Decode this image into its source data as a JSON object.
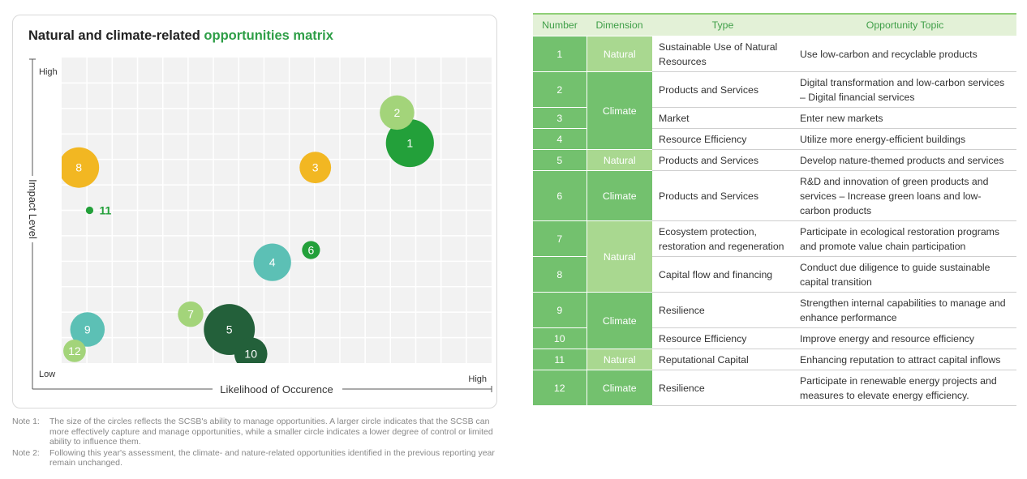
{
  "chart_data": {
    "type": "scatter",
    "title_main": "Natural and climate-related ",
    "title_accent": "opportunities matrix",
    "xlabel": "Likelihood of Occurence",
    "ylabel": "Impact Level",
    "x_low_label": "Low",
    "x_high_label": "High",
    "y_high_label": "High",
    "xlim": [
      0,
      10
    ],
    "ylim": [
      0,
      10
    ],
    "grid": true,
    "points": [
      {
        "label": "1",
        "x": 8.1,
        "y": 7.2,
        "size": 1.6,
        "color": "#23a03a",
        "text_color": "#ffffff"
      },
      {
        "label": "2",
        "x": 7.8,
        "y": 8.2,
        "size": 1.15,
        "color": "#a3d47a",
        "text_color": "#ffffff"
      },
      {
        "label": "3",
        "x": 5.9,
        "y": 6.4,
        "size": 1.05,
        "color": "#f2b722",
        "text_color": "#ffffff"
      },
      {
        "label": "4",
        "x": 4.9,
        "y": 3.3,
        "size": 1.25,
        "color": "#5cc0b5",
        "text_color": "#ffffff"
      },
      {
        "label": "5",
        "x": 3.9,
        "y": 1.1,
        "size": 1.7,
        "color": "#23603a",
        "text_color": "#ffffff"
      },
      {
        "label": "6",
        "x": 5.8,
        "y": 3.7,
        "size": 0.6,
        "color": "#23a03a",
        "text_color": "#ffffff"
      },
      {
        "label": "7",
        "x": 3.0,
        "y": 1.6,
        "size": 0.85,
        "color": "#a3d47a",
        "text_color": "#ffffff"
      },
      {
        "label": "8",
        "x": 0.4,
        "y": 6.4,
        "size": 1.35,
        "color": "#f2b722",
        "text_color": "#ffffff"
      },
      {
        "label": "9",
        "x": 0.6,
        "y": 1.1,
        "size": 1.15,
        "color": "#5cc0b5",
        "text_color": "#ffffff"
      },
      {
        "label": "10",
        "x": 4.4,
        "y": 0.3,
        "size": 1.1,
        "color": "#23603a",
        "text_color": "#ffffff"
      },
      {
        "label": "11",
        "x": 0.65,
        "y": 5.0,
        "size": 0.25,
        "color": "#23a03a",
        "text_color": "#23a03a"
      },
      {
        "label": "12",
        "x": 0.3,
        "y": 0.4,
        "size": 0.75,
        "color": "#a3d47a",
        "text_color": "#ffffff"
      }
    ]
  },
  "notes": [
    {
      "label": "Note 1:",
      "text": "The size of the circles reflects the SCSB's ability to manage opportunities. A larger circle indicates that the SCSB can more effectively capture and manage opportunities, while a smaller circle indicates a lower degree of control or limited ability to influence them."
    },
    {
      "label": "Note 2:",
      "text": "Following this year's assessment, the climate- and nature-related opportunities identified in the previous reporting year remain unchanged."
    }
  ],
  "table": {
    "headers": [
      "Number",
      "Dimension",
      "Type",
      "Opportunity Topic"
    ],
    "rows": [
      {
        "number": "1",
        "dimension": "Natural",
        "dim_kind": "natural",
        "dim_span": 1,
        "type": "Sustainable Use of Natural Resources",
        "type_span": 1,
        "topic": "Use low-carbon and recyclable products",
        "h": 44
      },
      {
        "number": "2",
        "dimension": "Climate",
        "dim_kind": "climate",
        "dim_span": 3,
        "type": "Products and Services",
        "type_span": 1,
        "topic": "Digital transformation and low-carbon services – Digital financial services",
        "h": 44
      },
      {
        "number": "3",
        "type": "Market",
        "type_span": 1,
        "topic": "Enter new markets",
        "h": 26
      },
      {
        "number": "4",
        "type": "Resource Efficiency",
        "type_span": 1,
        "topic": "Utilize more energy-efficient buildings",
        "h": 26
      },
      {
        "number": "5",
        "dimension": "Natural",
        "dim_kind": "natural",
        "dim_span": 1,
        "type": "Products and Services",
        "type_span": 1,
        "topic": "Develop nature-themed products and services",
        "h": 26
      },
      {
        "number": "6",
        "dimension": "Climate",
        "dim_kind": "climate",
        "dim_span": 1,
        "type": "Products and Services",
        "type_span": 1,
        "topic": "R&D and innovation of green products and services – Increase green loans and low-carbon products",
        "h": 62
      },
      {
        "number": "7",
        "dimension": "Natural",
        "dim_kind": "natural",
        "dim_span": 2,
        "type": "Ecosystem protection, restoration and regeneration",
        "type_span": 1,
        "topic": "Participate in ecological restoration programs and promote value chain participation",
        "h": 44
      },
      {
        "number": "8",
        "type": "Capital flow and financing",
        "type_span": 1,
        "topic": "Conduct due diligence to guide sustainable capital transition",
        "h": 44
      },
      {
        "number": "9",
        "dimension": "Climate",
        "dim_kind": "climate",
        "dim_span": 2,
        "type": "Resilience",
        "type_span": 1,
        "topic": "Strengthen internal capabilities to manage and enhance performance",
        "h": 44
      },
      {
        "number": "10",
        "type": "Resource Efficiency",
        "type_span": 1,
        "topic": "Improve energy and resource efficiency",
        "h": 26
      },
      {
        "number": "11",
        "dimension": "Natural",
        "dim_kind": "natural",
        "dim_span": 1,
        "type": "Reputational Capital",
        "type_span": 1,
        "topic": "Enhancing reputation to attract capital inflows",
        "h": 26
      },
      {
        "number": "12",
        "dimension": "Climate",
        "dim_kind": "climate",
        "dim_span": 1,
        "type": "Resilience",
        "type_span": 1,
        "topic": "Participate in renewable energy projects and measures to elevate energy efficiency.",
        "h": 44
      }
    ]
  }
}
